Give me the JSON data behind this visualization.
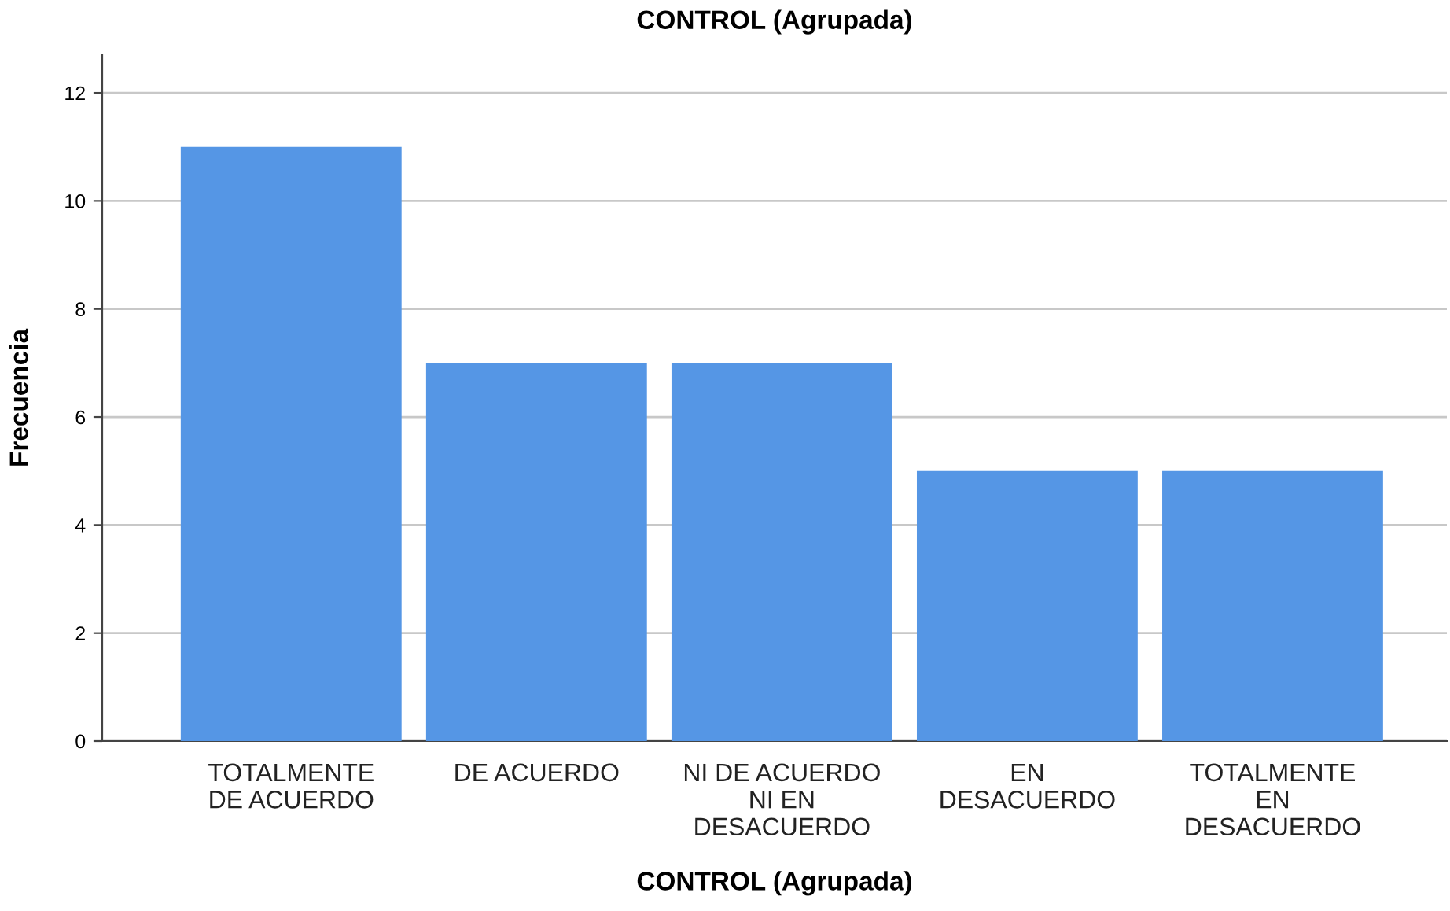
{
  "chart_data": {
    "type": "bar",
    "title": "CONTROL (Agrupada)",
    "xlabel": "CONTROL (Agrupada)",
    "ylabel": "Frecuencia",
    "categories": [
      "TOTALMENTE\nDE ACUERDO",
      "DE ACUERDO",
      "NI DE ACUERDO\nNI EN\nDESACUERDO",
      "EN\nDESACUERDO",
      "TOTALMENTE\nEN\nDESACUERDO"
    ],
    "values": [
      11,
      7,
      7,
      5,
      5
    ],
    "color": "#5596e5",
    "ylim": [
      0,
      12.7
    ],
    "yticks": [
      0,
      2,
      4,
      6,
      8,
      10,
      12
    ],
    "grid": "y"
  }
}
